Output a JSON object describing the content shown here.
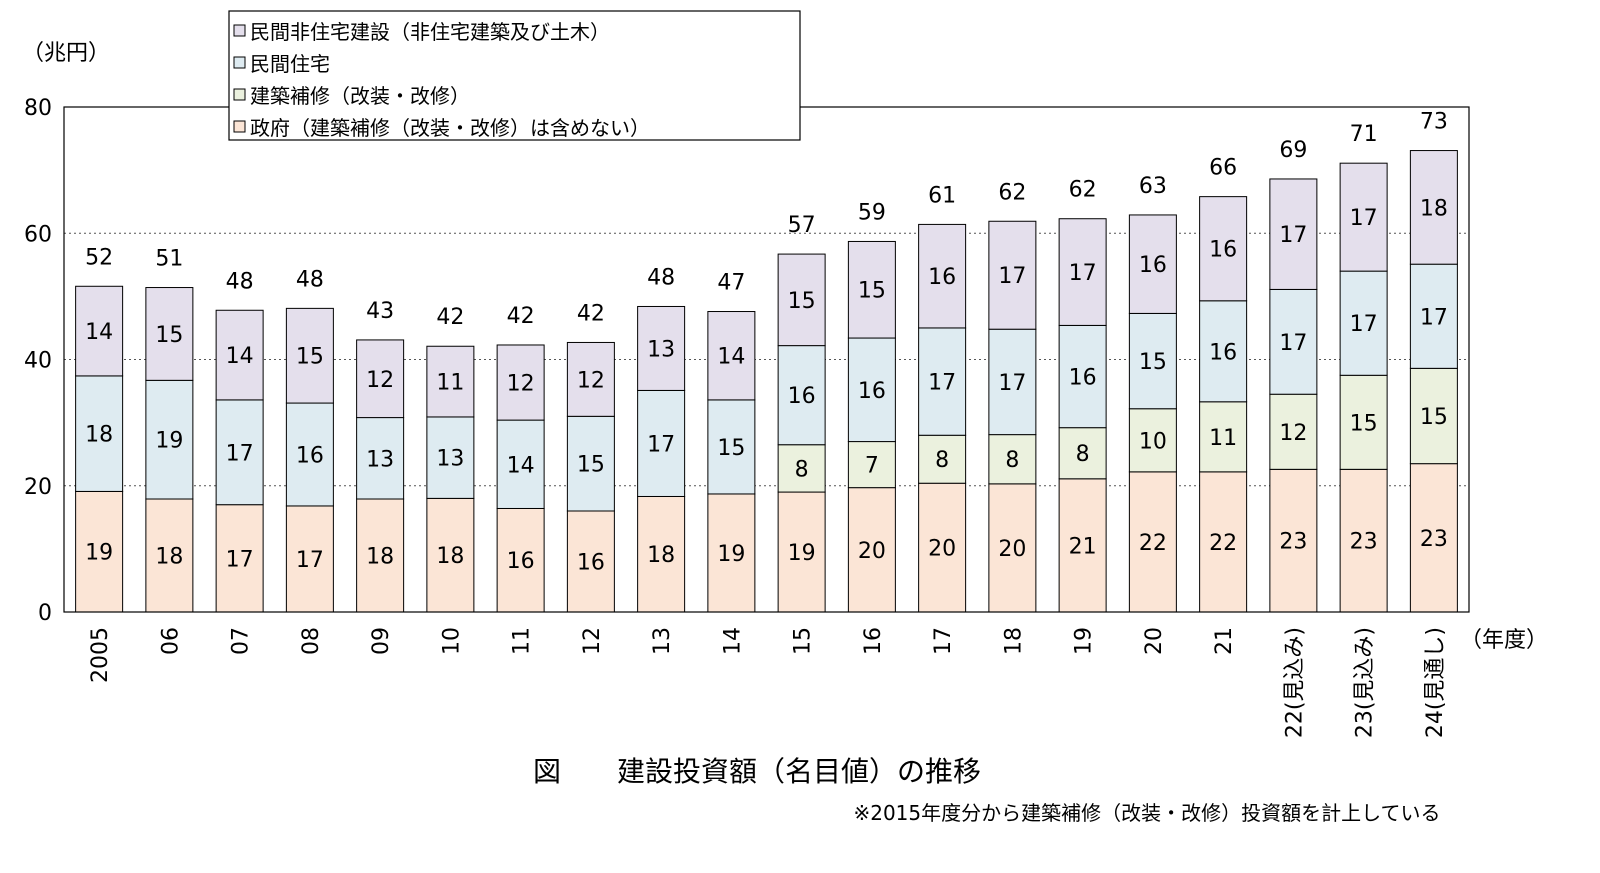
{
  "chart_data": {
    "type": "bar",
    "stacked": true,
    "title": "図　　建設投資額（名目値）の推移",
    "note": "※2015年度分から建築補修（改装・改修）投資額を計上している",
    "ylabel": "（兆円）",
    "xlabel": "（年度）",
    "ylim": [
      0,
      80
    ],
    "yticks": [
      "0",
      "20",
      "40",
      "60",
      "80"
    ],
    "grid": true,
    "legend_position": "top-left",
    "categories": [
      "2005",
      "06",
      "07",
      "08",
      "09",
      "10",
      "11",
      "12",
      "13",
      "14",
      "15",
      "16",
      "17",
      "18",
      "19",
      "20",
      "21",
      "22(見込み)",
      "23(見込み)",
      "24(見通し)"
    ],
    "series": [
      {
        "name": "政府（建築補修（改装・改修）は含めない）",
        "color": "#fbe5d6",
        "values": [
          19,
          18,
          17,
          17,
          18,
          18,
          16,
          16,
          18,
          19,
          19,
          20,
          20,
          20,
          21,
          22,
          22,
          23,
          23,
          23
        ]
      },
      {
        "name": "建築補修（改装・改修）",
        "color": "#ebf1de",
        "values": [
          null,
          null,
          null,
          null,
          null,
          null,
          null,
          null,
          null,
          null,
          8,
          7,
          8,
          8,
          8,
          10,
          11,
          12,
          15,
          15
        ]
      },
      {
        "name": "民間住宅",
        "color": "#deebf1",
        "values": [
          18,
          19,
          17,
          16,
          13,
          13,
          14,
          15,
          17,
          15,
          16,
          16,
          17,
          17,
          16,
          15,
          16,
          17,
          17,
          17
        ]
      },
      {
        "name": "民間非住宅建設（非住宅建築及び土木）",
        "color": "#e4dfec",
        "values": [
          14,
          15,
          14,
          15,
          12,
          11,
          12,
          12,
          13,
          14,
          15,
          15,
          16,
          17,
          17,
          16,
          16,
          17,
          17,
          18
        ]
      }
    ],
    "plot_values": [
      [
        19.1,
        17.9,
        17.0,
        16.8,
        17.9,
        18.0,
        16.4,
        16.0,
        18.3,
        18.7,
        19.0,
        19.7,
        20.4,
        20.3,
        21.1,
        22.2,
        22.2,
        22.6,
        22.6,
        23.5
      ],
      [
        null,
        null,
        null,
        null,
        null,
        null,
        null,
        null,
        null,
        null,
        7.5,
        7.3,
        7.6,
        7.8,
        8.1,
        10.0,
        11.1,
        11.9,
        14.9,
        15.1
      ],
      [
        18.3,
        18.8,
        16.6,
        16.3,
        12.9,
        12.9,
        14.0,
        15.0,
        16.8,
        14.9,
        15.7,
        16.4,
        17.0,
        16.7,
        16.2,
        15.1,
        16.0,
        16.6,
        16.5,
        16.5
      ],
      [
        14.2,
        14.7,
        14.2,
        15.0,
        12.3,
        11.2,
        11.9,
        11.7,
        13.3,
        14.0,
        14.5,
        15.3,
        16.4,
        17.1,
        16.9,
        15.6,
        16.5,
        17.5,
        17.1,
        18.0
      ]
    ],
    "totals": [
      52,
      51,
      48,
      48,
      43,
      42,
      42,
      42,
      48,
      47,
      57,
      59,
      61,
      62,
      62,
      63,
      66,
      69,
      71,
      73
    ]
  },
  "legend_order": [
    3,
    2,
    1,
    0
  ]
}
